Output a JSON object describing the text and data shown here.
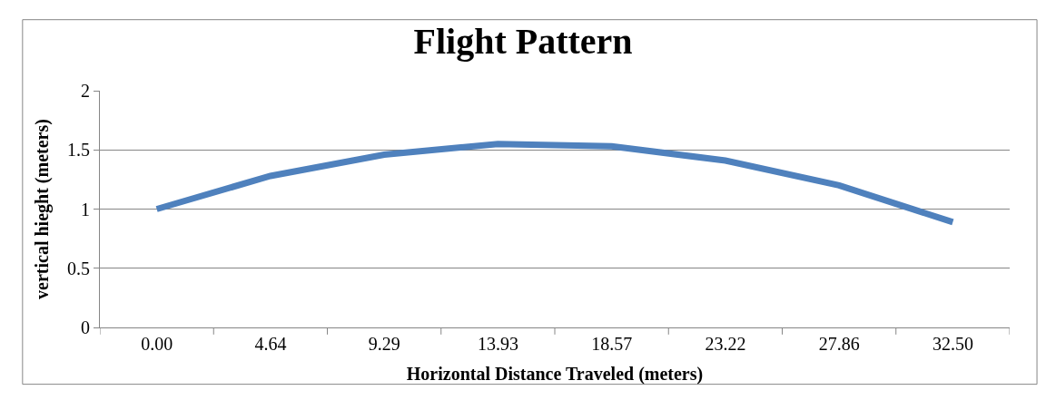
{
  "chart_data": {
    "type": "line",
    "title": "Flight Pattern",
    "xlabel": "Horizontal Distance Traveled (meters)",
    "ylabel": "vertical hieght (meters)",
    "categories": [
      "0.00",
      "4.64",
      "9.29",
      "13.93",
      "18.57",
      "23.22",
      "27.86",
      "32.50"
    ],
    "series": [
      {
        "color": "#4f81bd",
        "values": [
          1.0,
          1.28,
          1.46,
          1.55,
          1.53,
          1.41,
          1.2,
          0.89
        ]
      }
    ],
    "ylim": [
      0,
      2
    ],
    "yticks": [
      0,
      0.5,
      1,
      1.5,
      2
    ],
    "grid": "y",
    "marker": "none",
    "line_style": "solid"
  }
}
